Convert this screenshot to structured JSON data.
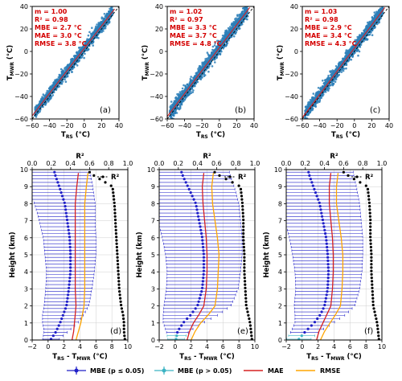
{
  "chart_data": [
    {
      "panel": "(a)",
      "type": "scatter",
      "xlabel_main": "T",
      "xlabel_sub": "RS",
      "xlabel_unit": " (°C)",
      "ylabel_main": "T",
      "ylabel_sub": "MWR",
      "ylabel_unit": " (°C)",
      "xlim": [
        -60,
        40
      ],
      "ylim": [
        -60,
        40
      ],
      "xticks": [
        -60,
        -40,
        -20,
        0,
        20,
        40
      ],
      "yticks": [
        -60,
        -40,
        -20,
        0,
        20,
        40
      ],
      "xtick_labels": [
        "−60",
        "−40",
        "−20",
        "0",
        "20",
        "40"
      ],
      "ytick_labels": [
        "−60",
        "−40",
        "−20",
        "0",
        "20",
        "40"
      ],
      "stats": [
        "m = 1.00",
        "R² = 0.98",
        "MBE = 2.7 °C",
        "MAE = 3.0 °C",
        "RMSE = 3.8 °C"
      ],
      "fit": {
        "slope": 1.0,
        "intercept": 2.7
      },
      "point_range": [
        -57,
        33
      ],
      "spread": 4.5
    },
    {
      "panel": "(b)",
      "type": "scatter",
      "xlabel_main": "T",
      "xlabel_sub": "RS",
      "xlabel_unit": " (°C)",
      "ylabel_main": "T",
      "ylabel_sub": "MWR",
      "ylabel_unit": " (°C)",
      "xlim": [
        -60,
        40
      ],
      "ylim": [
        -60,
        40
      ],
      "xticks": [
        -60,
        -40,
        -20,
        0,
        20,
        40
      ],
      "yticks": [
        -60,
        -40,
        -20,
        0,
        20,
        40
      ],
      "xtick_labels": [
        "−60",
        "−40",
        "−20",
        "0",
        "20",
        "40"
      ],
      "ytick_labels": [
        "−60",
        "−40",
        "−20",
        "0",
        "20",
        "40"
      ],
      "stats": [
        "m = 1.02",
        "R² = 0.97",
        "MBE = 3.3 °C",
        "MAE = 3.7 °C",
        "RMSE = 4.8 °C"
      ],
      "fit": {
        "slope": 1.02,
        "intercept": 3.3
      },
      "point_range": [
        -57,
        33
      ],
      "spread": 5.5
    },
    {
      "panel": "(c)",
      "type": "scatter",
      "xlabel_main": "T",
      "xlabel_sub": "RS",
      "xlabel_unit": " (°C)",
      "ylabel_main": "T",
      "ylabel_sub": "MWR",
      "ylabel_unit": " (°C)",
      "xlim": [
        -60,
        40
      ],
      "ylim": [
        -60,
        40
      ],
      "xticks": [
        -60,
        -40,
        -20,
        0,
        20,
        40
      ],
      "yticks": [
        -60,
        -40,
        -20,
        0,
        20,
        40
      ],
      "xtick_labels": [
        "−60",
        "−40",
        "−20",
        "0",
        "20",
        "40"
      ],
      "ytick_labels": [
        "−60",
        "−40",
        "−20",
        "0",
        "20",
        "40"
      ],
      "stats": [
        "m = 1.03",
        "R² = 0.98",
        "MBE = 2.9 °C",
        "MAE = 3.4 °C",
        "RMSE = 4.3 °C"
      ],
      "fit": {
        "slope": 1.03,
        "intercept": 2.9
      },
      "point_range": [
        -57,
        33
      ],
      "spread": 5.0
    },
    {
      "panel": "(d)",
      "type": "line",
      "xlabel_main": "T",
      "xlabel_sub1": "RS",
      "xlabel_mid": " - T",
      "xlabel_sub2": "MWR",
      "xlabel_unit": " (°C)",
      "ylabel": "Height (km)",
      "top_xlabel": "R²",
      "r2_legend": "R²",
      "xlim": [
        -2,
        10
      ],
      "ylim": [
        0,
        10
      ],
      "top_xlim": [
        0,
        1
      ],
      "xticks": [
        -2,
        0,
        2,
        4,
        6,
        8,
        10
      ],
      "xtick_labels": [
        "−2",
        "0",
        "2",
        "4",
        "6",
        "8",
        "10"
      ],
      "yticks": [
        0,
        1,
        2,
        3,
        4,
        5,
        6,
        7,
        8,
        9,
        10
      ],
      "ytick_labels": [
        "0",
        "1",
        "2",
        "3",
        "4",
        "5",
        "6",
        "7",
        "8",
        "9",
        "10"
      ],
      "top_xticks": [
        0,
        0.2,
        0.4,
        0.6,
        0.8,
        1.0
      ],
      "top_xtick_labels": [
        "0.0",
        "0.2",
        "0.4",
        "0.6",
        "0.8",
        "1.0"
      ],
      "height": [
        0.0,
        0.5,
        1.0,
        1.5,
        2.0,
        3.0,
        4.0,
        5.0,
        6.0,
        7.0,
        8.0,
        9.0,
        9.8
      ],
      "mbe": [
        0.3,
        1.0,
        1.5,
        1.9,
        2.3,
        2.6,
        2.8,
        2.8,
        2.7,
        2.4,
        2.1,
        1.4,
        0.8
      ],
      "mbe_err": [
        1.0,
        1.5,
        2.2,
        2.6,
        2.8,
        2.9,
        3.0,
        3.2,
        3.3,
        3.5,
        3.8,
        4.2,
        4.5
      ],
      "mae": [
        3.0,
        3.2,
        3.3,
        3.4,
        3.5,
        3.4,
        3.4,
        3.4,
        3.4,
        3.4,
        3.4,
        3.6,
        3.8
      ],
      "rmse": [
        3.5,
        3.8,
        4.1,
        4.3,
        4.5,
        4.6,
        4.6,
        4.6,
        4.6,
        4.6,
        4.6,
        4.8,
        5.0
      ],
      "r2": [
        0.97,
        0.96,
        0.96,
        0.95,
        0.93,
        0.91,
        0.9,
        0.89,
        0.88,
        0.87,
        0.86,
        0.84,
        0.6
      ],
      "insig_heights": []
    },
    {
      "panel": "(e)",
      "type": "line",
      "xlabel_main": "T",
      "xlabel_sub1": "RS",
      "xlabel_mid": " - T",
      "xlabel_sub2": "MWR",
      "xlabel_unit": " (°C)",
      "ylabel": "Height (km)",
      "top_xlabel": "R²",
      "r2_legend": "R²",
      "xlim": [
        -2,
        10
      ],
      "ylim": [
        0,
        10
      ],
      "top_xlim": [
        0,
        1
      ],
      "xticks": [
        -2,
        0,
        2,
        4,
        6,
        8,
        10
      ],
      "xtick_labels": [
        "−2",
        "0",
        "2",
        "4",
        "6",
        "8",
        "10"
      ],
      "yticks": [
        0,
        1,
        2,
        3,
        4,
        5,
        6,
        7,
        8,
        9,
        10
      ],
      "ytick_labels": [
        "0",
        "1",
        "2",
        "3",
        "4",
        "5",
        "6",
        "7",
        "8",
        "9",
        "10"
      ],
      "top_xticks": [
        0,
        0.2,
        0.4,
        0.6,
        0.8,
        1.0
      ],
      "top_xtick_labels": [
        "0.0",
        "0.2",
        "0.4",
        "0.6",
        "0.8",
        "1.0"
      ],
      "height": [
        0.0,
        0.5,
        1.0,
        1.5,
        2.0,
        3.0,
        4.0,
        5.0,
        6.0,
        7.0,
        8.0,
        9.0,
        9.8
      ],
      "mbe": [
        0.1,
        0.3,
        1.0,
        2.0,
        2.8,
        3.4,
        3.6,
        3.6,
        3.4,
        3.0,
        2.6,
        1.6,
        0.8
      ],
      "mbe_err": [
        1.0,
        1.4,
        2.5,
        3.5,
        4.2,
        4.5,
        4.6,
        4.8,
        5.0,
        5.2,
        5.4,
        5.8,
        6.0
      ],
      "mae": [
        1.5,
        1.8,
        2.3,
        3.0,
        3.6,
        3.9,
        4.0,
        4.0,
        3.9,
        3.7,
        3.5,
        3.4,
        3.6
      ],
      "rmse": [
        2.0,
        2.5,
        3.2,
        4.2,
        5.0,
        5.3,
        5.4,
        5.5,
        5.3,
        5.0,
        4.7,
        4.6,
        4.8
      ],
      "r2": [
        0.97,
        0.96,
        0.95,
        0.93,
        0.91,
        0.9,
        0.89,
        0.89,
        0.88,
        0.88,
        0.87,
        0.85,
        0.58
      ],
      "insig_heights": [
        0.05,
        0.15,
        0.25
      ]
    },
    {
      "panel": "(f)",
      "type": "line",
      "xlabel_main": "T",
      "xlabel_sub1": "RS",
      "xlabel_mid": " - T",
      "xlabel_sub2": "MWR",
      "xlabel_unit": " (°C)",
      "ylabel": "Height (km)",
      "top_xlabel": "R²",
      "r2_legend": "R²",
      "xlim": [
        -2,
        10
      ],
      "ylim": [
        0,
        10
      ],
      "top_xlim": [
        0,
        1
      ],
      "xticks": [
        -2,
        0,
        2,
        4,
        6,
        8,
        10
      ],
      "xtick_labels": [
        "−2",
        "0",
        "2",
        "4",
        "6",
        "8",
        "10"
      ],
      "yticks": [
        0,
        1,
        2,
        3,
        4,
        5,
        6,
        7,
        8,
        9,
        10
      ],
      "ytick_labels": [
        "0",
        "1",
        "2",
        "3",
        "4",
        "5",
        "6",
        "7",
        "8",
        "9",
        "10"
      ],
      "top_xticks": [
        0,
        0.2,
        0.4,
        0.6,
        0.8,
        1.0
      ],
      "top_xtick_labels": [
        "0.0",
        "0.2",
        "0.4",
        "0.6",
        "0.8",
        "1.0"
      ],
      "height": [
        0.0,
        0.5,
        1.0,
        1.5,
        2.0,
        3.0,
        4.0,
        5.0,
        6.0,
        7.0,
        8.0,
        9.0,
        9.8
      ],
      "mbe": [
        -0.5,
        0.4,
        1.5,
        2.3,
        2.8,
        3.2,
        3.3,
        3.2,
        3.0,
        2.6,
        2.2,
        1.4,
        0.8
      ],
      "mbe_err": [
        1.5,
        1.8,
        2.4,
        3.2,
        3.8,
        4.0,
        4.2,
        4.4,
        4.6,
        4.8,
        5.0,
        5.4,
        5.6
      ],
      "mae": [
        1.8,
        2.1,
        2.6,
        3.1,
        3.6,
        3.8,
        3.9,
        3.9,
        3.8,
        3.6,
        3.4,
        3.4,
        3.6
      ],
      "rmse": [
        2.3,
        2.8,
        3.5,
        4.2,
        4.8,
        5.0,
        5.1,
        5.1,
        4.9,
        4.6,
        4.3,
        4.3,
        4.5
      ],
      "r2": [
        0.97,
        0.96,
        0.95,
        0.93,
        0.91,
        0.9,
        0.89,
        0.89,
        0.88,
        0.88,
        0.87,
        0.85,
        0.6
      ],
      "insig_heights": [
        0.05,
        0.15,
        0.25,
        0.35
      ]
    }
  ],
  "legend": [
    {
      "label": "MBE (p ≤ 0.05)",
      "color": "#1f1fc8",
      "kind": "errorbar"
    },
    {
      "label": "MBE (p > 0.05)",
      "color": "#3bb3c3",
      "kind": "errorbar"
    },
    {
      "label": "MAE",
      "color": "#d62020",
      "kind": "line"
    },
    {
      "label": "RMSE",
      "color": "#ffa500",
      "kind": "line"
    }
  ],
  "colors": {
    "scatter": "#2d7fb8",
    "fit_line": "#d62020",
    "one_to_one": "#000000",
    "mbe": "#1f1fc8",
    "mbe_insig": "#3bb3c3",
    "mae": "#d62020",
    "rmse": "#ffa500",
    "r2": "#000000",
    "stats_text": "#d40000"
  }
}
